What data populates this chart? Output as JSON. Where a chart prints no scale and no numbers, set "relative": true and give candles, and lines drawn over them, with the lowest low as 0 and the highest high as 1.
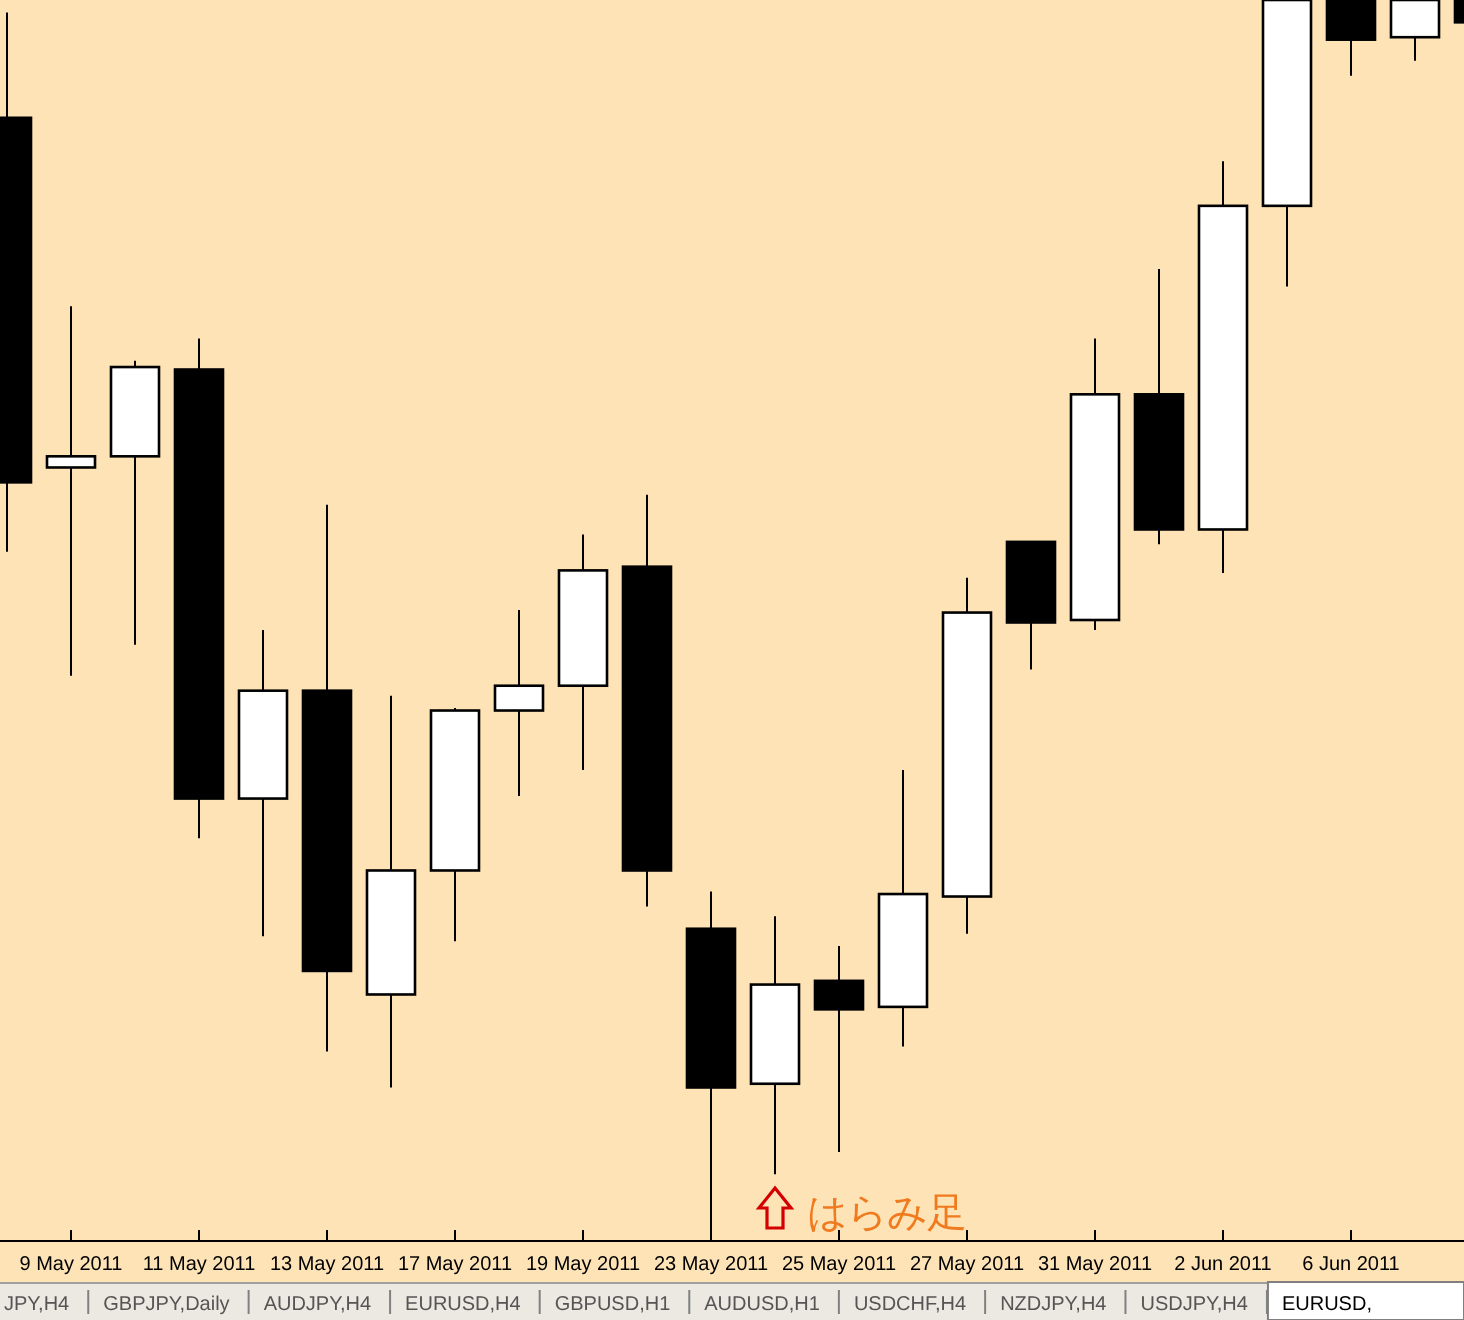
{
  "chart_data": {
    "type": "candlestick",
    "relative": true,
    "categories": [
      null,
      "9 May 2011",
      null,
      "11 May 2011",
      null,
      "13 May 2011",
      null,
      "17 May 2011",
      null,
      "19 May 2011",
      null,
      "23 May 2011",
      null,
      "25 May 2011",
      null,
      "27 May 2011",
      null,
      "31 May 2011",
      null,
      "2 Jun 2011",
      null,
      "6 Jun 2011",
      null,
      null
    ],
    "ohlc": [
      [
        0.905,
        0.99,
        0.555,
        0.611
      ],
      [
        0.623,
        0.753,
        0.455,
        0.632
      ],
      [
        0.632,
        0.709,
        0.48,
        0.704
      ],
      [
        0.702,
        0.727,
        0.324,
        0.356
      ],
      [
        0.356,
        0.492,
        0.245,
        0.443
      ],
      [
        0.443,
        0.593,
        0.152,
        0.217
      ],
      [
        0.198,
        0.439,
        0.123,
        0.298
      ],
      [
        0.298,
        0.429,
        0.241,
        0.427
      ],
      [
        0.427,
        0.508,
        0.358,
        0.447
      ],
      [
        0.447,
        0.569,
        0.379,
        0.54
      ],
      [
        0.543,
        0.601,
        0.269,
        0.298
      ],
      [
        0.251,
        0.281,
        0,
        0.123
      ],
      [
        0.126,
        0.261,
        0.053,
        0.206
      ],
      [
        0.209,
        0.237,
        0.071,
        0.186
      ],
      [
        0.188,
        0.379,
        0.156,
        0.279
      ],
      [
        0.277,
        0.534,
        0.247,
        0.506
      ],
      [
        0.563,
        0.563,
        0.46,
        0.498
      ],
      [
        0.5,
        0.727,
        0.492,
        0.682
      ],
      [
        0.682,
        0.783,
        0.561,
        0.573
      ],
      [
        0.573,
        0.87,
        0.538,
        0.834
      ],
      [
        0.834,
        1,
        0.769,
        1
      ],
      [
        1,
        1,
        0.939,
        0.968
      ],
      [
        0.97,
        1,
        0.951,
        1
      ],
      [
        1,
        1,
        0.982,
        0.982
      ]
    ],
    "annotations": [
      "JPY,H4",
      "GBPJPY,Daily",
      "AUDJPY,H4",
      "EURUSD,H4",
      "GBPUSD,H1",
      "AUDUSD,H1",
      "USDCHF,H4",
      "NZDJPY,H4",
      "USDJPY,H4",
      "EURUSD,",
      "はらみ足"
    ]
  }
}
